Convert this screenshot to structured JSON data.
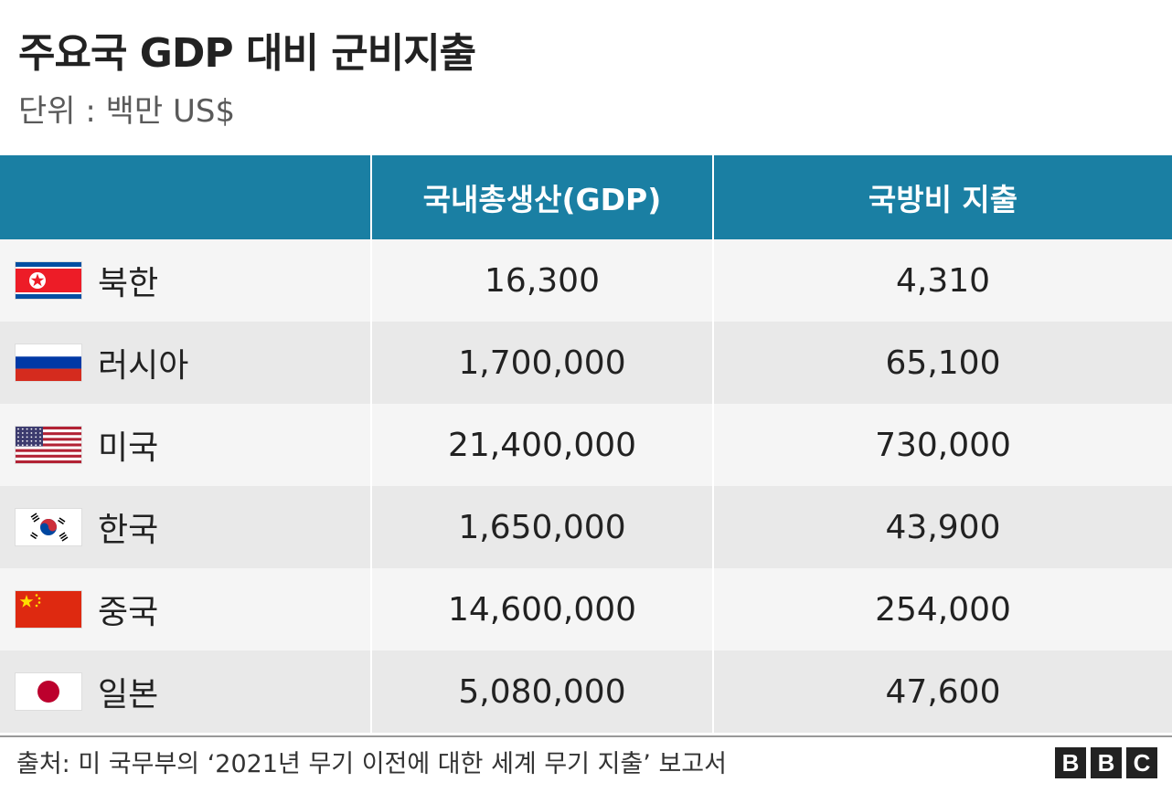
{
  "title": "주요국 GDP 대비 군비지출",
  "subtitle": "단위 : 백만 US$",
  "colors": {
    "header_bg": "#1a7fa3",
    "row_odd": "#f5f5f5",
    "row_even": "#e9e9e9"
  },
  "chart_data": {
    "type": "table",
    "title": "주요국 GDP 대비 군비지출",
    "subtitle": "단위 : 백만 US$",
    "columns": [
      "",
      "국내총생산(GDP)",
      "국방비 지출"
    ],
    "rows": [
      {
        "flag": "north-korea-flag",
        "country": "북한",
        "gdp": "16,300",
        "defense": "4,310"
      },
      {
        "flag": "russia-flag",
        "country": "러시아",
        "gdp": "1,700,000",
        "defense": "65,100"
      },
      {
        "flag": "usa-flag",
        "country": "미국",
        "gdp": "21,400,000",
        "defense": "730,000"
      },
      {
        "flag": "south-korea-flag",
        "country": "한국",
        "gdp": "1,650,000",
        "defense": "43,900"
      },
      {
        "flag": "china-flag",
        "country": "중국",
        "gdp": "14,600,000",
        "defense": "254,000"
      },
      {
        "flag": "japan-flag",
        "country": "일본",
        "gdp": "5,080,000",
        "defense": "47,600"
      }
    ]
  },
  "source": "출처: 미 국무부의 ‘2021년 무기 이전에 대한 세계 무기 지출’ 보고서",
  "logo": [
    "B",
    "B",
    "C"
  ]
}
